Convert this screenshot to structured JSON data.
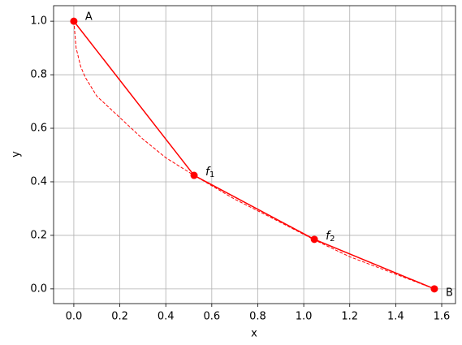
{
  "chart_data": {
    "type": "line",
    "xlabel": "x",
    "ylabel": "y",
    "xlim": [
      -0.088,
      1.66
    ],
    "ylim": [
      -0.055,
      1.058
    ],
    "xticks": [
      {
        "value": 0,
        "label": "0.0"
      },
      {
        "value": 0.2,
        "label": "0.2"
      },
      {
        "value": 0.4,
        "label": "0.4"
      },
      {
        "value": 0.6,
        "label": "0.6"
      },
      {
        "value": 0.8,
        "label": "0.8"
      },
      {
        "value": 1.0,
        "label": "1.0"
      },
      {
        "value": 1.2,
        "label": "1.2"
      },
      {
        "value": 1.4,
        "label": "1.4"
      },
      {
        "value": 1.6,
        "label": "1.6"
      }
    ],
    "yticks": [
      {
        "value": 0,
        "label": "0.0"
      },
      {
        "value": 0.2,
        "label": "0.2"
      },
      {
        "value": 0.4,
        "label": "0.4"
      },
      {
        "value": 0.6,
        "label": "0.6"
      },
      {
        "value": 0.8,
        "label": "0.8"
      },
      {
        "value": 1.0,
        "label": "1.0"
      }
    ],
    "grid": true,
    "series": [
      {
        "style": "dashed",
        "color": "#ff0000",
        "x": [
          0,
          0.01,
          0.03,
          0.05,
          0.1,
          0.2,
          0.3,
          0.4,
          0.523,
          0.7,
          0.85,
          1.046,
          1.2,
          1.4,
          1.568
        ],
        "values": [
          1,
          0.9,
          0.83,
          0.79,
          0.72,
          0.64,
          0.56,
          0.49,
          0.424,
          0.335,
          0.27,
          0.183,
          0.12,
          0.055,
          0
        ]
      },
      {
        "style": "solid",
        "marker": true,
        "color": "#ff0000",
        "x": [
          0,
          0.523,
          1.046,
          1.568
        ],
        "values": [
          1,
          0.424,
          0.185,
          0
        ],
        "labels": [
          "A",
          [
            "f",
            "1"
          ],
          [
            "f",
            "2"
          ],
          "B"
        ]
      }
    ]
  }
}
